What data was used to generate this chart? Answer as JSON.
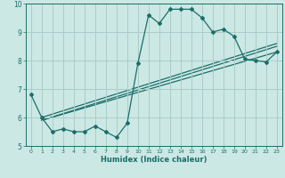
{
  "title": "",
  "xlabel": "Humidex (Indice chaleur)",
  "bg_color": "#cce8e4",
  "grid_color": "#aaccc8",
  "line_color": "#1a6e6a",
  "xlim": [
    -0.5,
    23.5
  ],
  "ylim": [
    5,
    10
  ],
  "yticks": [
    5,
    6,
    7,
    8,
    9,
    10
  ],
  "xticks": [
    0,
    1,
    2,
    3,
    4,
    5,
    6,
    7,
    8,
    9,
    10,
    11,
    12,
    13,
    14,
    15,
    16,
    17,
    18,
    19,
    20,
    21,
    22,
    23
  ],
  "series1_x": [
    0,
    1,
    2,
    3,
    4,
    5,
    6,
    7,
    8,
    9,
    10,
    11,
    12,
    13,
    14,
    15,
    16,
    17,
    18,
    19,
    20,
    21,
    22,
    23
  ],
  "series1_y": [
    6.8,
    6.0,
    5.5,
    5.6,
    5.5,
    5.5,
    5.7,
    5.5,
    5.3,
    5.8,
    7.9,
    9.6,
    9.3,
    9.8,
    9.8,
    9.8,
    9.5,
    9.0,
    9.1,
    8.85,
    8.05,
    8.0,
    7.95,
    8.3
  ],
  "trend1_x": [
    1,
    23
  ],
  "trend1_y": [
    5.9,
    8.3
  ],
  "trend2_x": [
    1,
    23
  ],
  "trend2_y": [
    5.9,
    8.5
  ],
  "trend3_x": [
    1,
    23
  ],
  "trend3_y": [
    6.0,
    8.6
  ]
}
